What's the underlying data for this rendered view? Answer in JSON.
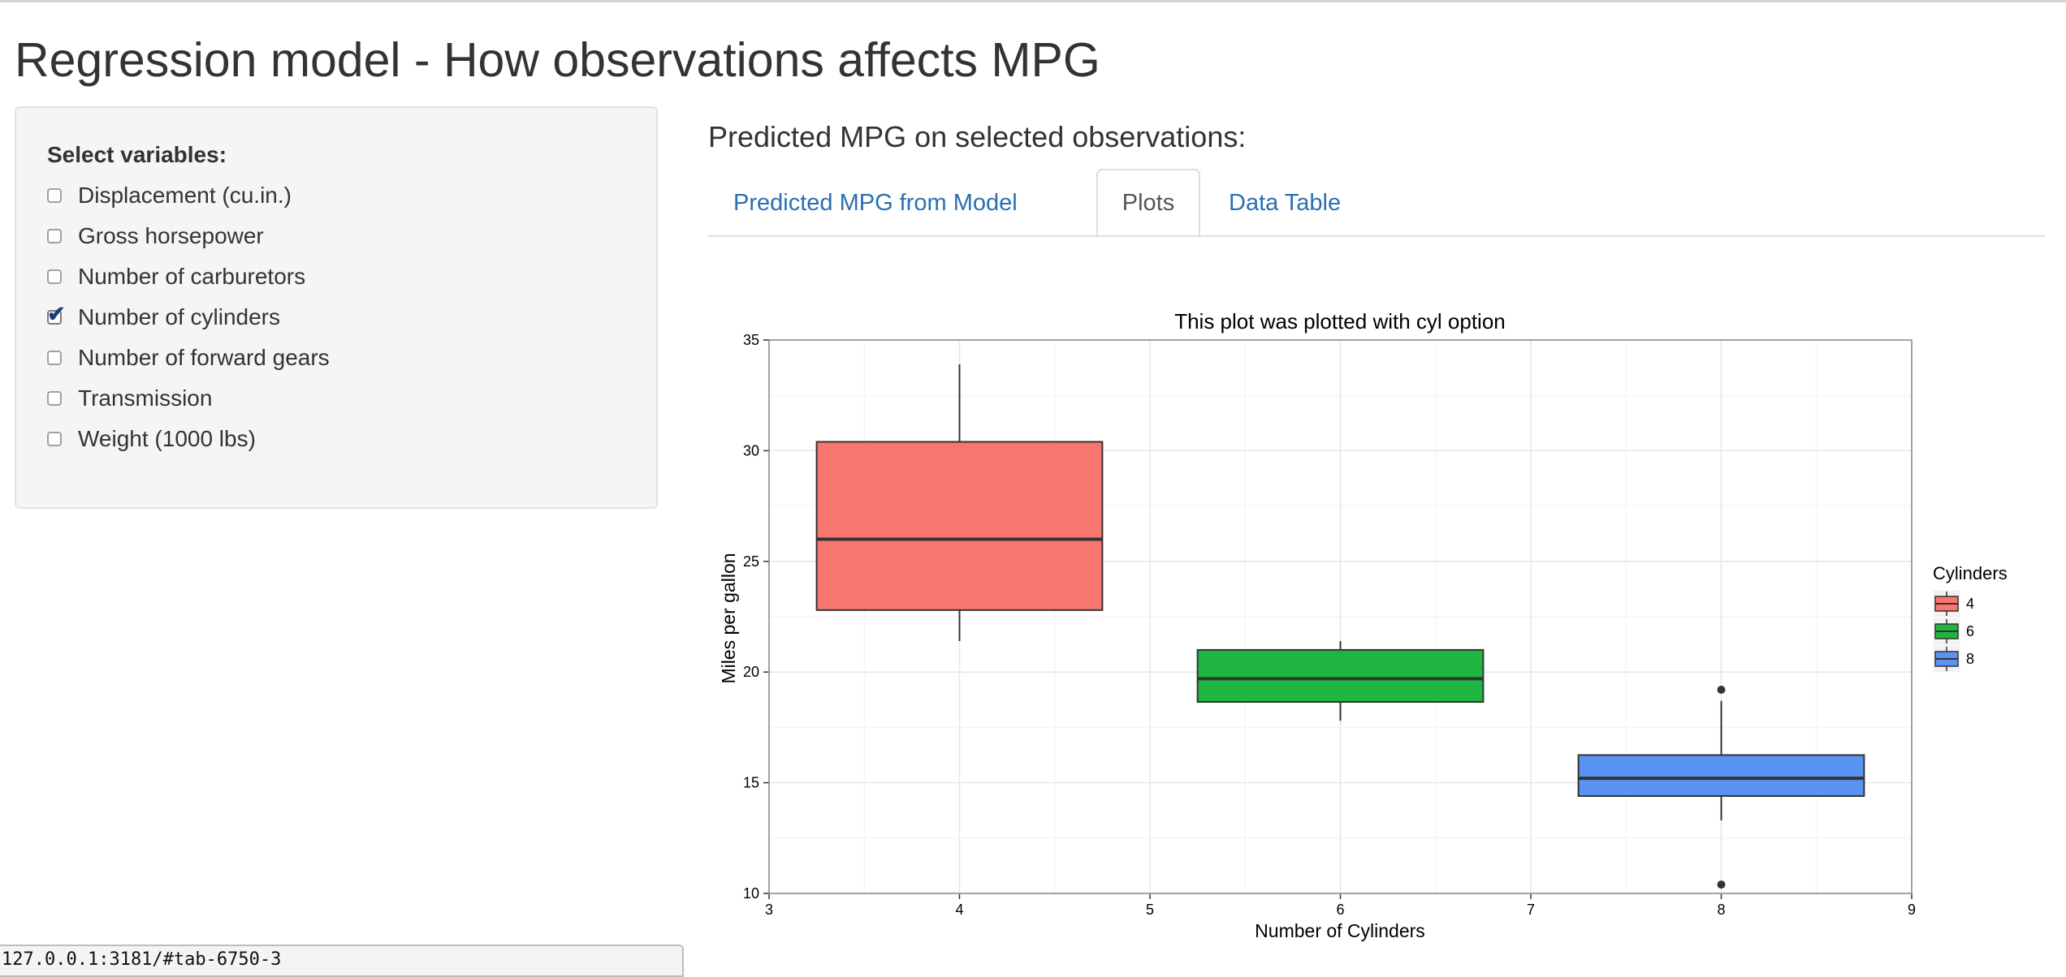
{
  "page": {
    "title": "Regression model - How observations affects MPG"
  },
  "sidebar": {
    "heading": "Select variables:",
    "options": [
      {
        "label": "Displacement (cu.in.)",
        "checked": false
      },
      {
        "label": "Gross horsepower",
        "checked": false
      },
      {
        "label": "Number of carburetors",
        "checked": false
      },
      {
        "label": "Number of cylinders",
        "checked": true
      },
      {
        "label": "Number of forward gears",
        "checked": false
      },
      {
        "label": "Transmission",
        "checked": false
      },
      {
        "label": "Weight (1000 lbs)",
        "checked": false
      }
    ]
  },
  "main": {
    "heading": "Predicted MPG on selected observations:",
    "tabs": [
      {
        "label": "Predicted MPG from Model",
        "active": false
      },
      {
        "label": "Plots",
        "active": true
      },
      {
        "label": "Data Table",
        "active": false
      }
    ]
  },
  "status": {
    "url": "127.0.0.1:3181/#tab-6750-3"
  },
  "chart_data": {
    "type": "boxplot",
    "title": "This plot was plotted with cyl option",
    "xlabel": "Number of Cylinders",
    "ylabel": "Miles per gallon",
    "xlim": [
      3,
      9
    ],
    "ylim": [
      10,
      35
    ],
    "xticks": [
      "3",
      "4",
      "5",
      "6",
      "7",
      "8",
      "9"
    ],
    "yticks": [
      "10",
      "15",
      "20",
      "25",
      "30",
      "35"
    ],
    "legend": {
      "title": "Cylinders",
      "placement": "right"
    },
    "grid": true,
    "series": [
      {
        "name": "4",
        "x": 4,
        "color": "#F8766D",
        "min": 21.4,
        "q1": 22.8,
        "median": 26.0,
        "q3": 30.4,
        "max": 33.9,
        "outliers": []
      },
      {
        "name": "6",
        "x": 6,
        "color": "#1EB640",
        "min": 17.8,
        "q1": 18.65,
        "median": 19.7,
        "q3": 21.0,
        "max": 21.4,
        "outliers": []
      },
      {
        "name": "8",
        "x": 8,
        "color": "#5B93F2",
        "min": 13.3,
        "q1": 14.4,
        "median": 15.2,
        "q3": 16.25,
        "max": 18.7,
        "outliers": [
          19.2,
          10.4
        ]
      }
    ]
  }
}
